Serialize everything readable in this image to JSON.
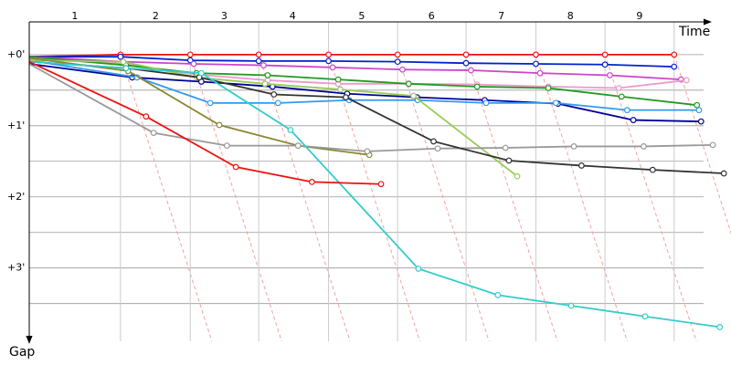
{
  "chart_data": {
    "type": "line",
    "xlabel": "Time",
    "ylabel": "Gap",
    "xlim": [
      0,
      10.1
    ],
    "ylim": [
      -0.46,
      4.03
    ],
    "xticks": [
      {
        "value": 0.66,
        "label": "1"
      },
      {
        "value": 1.83,
        "label": "2"
      },
      {
        "value": 2.82,
        "label": "3"
      },
      {
        "value": 3.81,
        "label": "4"
      },
      {
        "value": 4.81,
        "label": "5"
      },
      {
        "value": 5.82,
        "label": "6"
      },
      {
        "value": 6.83,
        "label": "7"
      },
      {
        "value": 7.83,
        "label": "8"
      },
      {
        "value": 8.83,
        "label": "9"
      }
    ],
    "lap_lines": [
      1.32,
      2.33,
      3.32,
      4.33,
      5.33,
      6.32,
      7.33,
      8.33,
      9.33
    ],
    "yticks": [
      {
        "value": 0,
        "label": "+0'"
      },
      {
        "value": 1,
        "label": "+1'"
      },
      {
        "value": 2,
        "label": "+2'"
      },
      {
        "value": 3,
        "label": "+3'"
      }
    ],
    "minor_grid": [
      0.5,
      1.5,
      2.5,
      3.5
    ],
    "series": [
      {
        "color": "#ee1111",
        "x": [
          0,
          1.32,
          2.33,
          3.32,
          4.33,
          5.33,
          6.32,
          7.33,
          8.33,
          9.33
        ],
        "values": [
          0.03,
          0,
          0,
          0,
          0,
          0,
          0,
          0,
          0,
          0
        ]
      },
      {
        "color": "#0022cc",
        "x": [
          0,
          1.32,
          2.33,
          3.32,
          4.33,
          5.33,
          6.32,
          7.33,
          8.33,
          9.33
        ],
        "values": [
          0.03,
          0.03,
          0.08,
          0.09,
          0.09,
          0.1,
          0.12,
          0.13,
          0.14,
          0.17
        ]
      },
      {
        "color": "#cc44cc",
        "x": [
          0,
          1.36,
          2.38,
          3.39,
          4.39,
          5.4,
          6.39,
          7.39,
          8.4,
          9.43
        ],
        "values": [
          0.03,
          0.1,
          0.13,
          0.15,
          0.18,
          0.21,
          0.22,
          0.26,
          0.29,
          0.35
        ]
      },
      {
        "color": "#ee99cc",
        "x": [
          0,
          1.39,
          2.42,
          3.45,
          4.47,
          5.49,
          6.48,
          7.51,
          8.53,
          9.51
        ],
        "values": [
          0.06,
          0.13,
          0.28,
          0.36,
          0.41,
          0.41,
          0.42,
          0.45,
          0.47,
          0.36
        ]
      },
      {
        "color": "#229922",
        "x": [
          0,
          1.4,
          2.42,
          3.45,
          4.47,
          5.49,
          6.48,
          7.51,
          8.57,
          9.66
        ],
        "values": [
          0.03,
          0.15,
          0.26,
          0.29,
          0.35,
          0.41,
          0.45,
          0.47,
          0.59,
          0.71
        ]
      },
      {
        "color": "#000099",
        "x": [
          0,
          1.49,
          2.49,
          3.52,
          4.6,
          5.61,
          6.59,
          7.65,
          8.74,
          9.72
        ],
        "values": [
          0.13,
          0.32,
          0.38,
          0.45,
          0.55,
          0.6,
          0.64,
          0.69,
          0.92,
          0.94
        ]
      },
      {
        "color": "#3399ee",
        "x": [
          0,
          1.56,
          2.62,
          3.6,
          4.63,
          5.62,
          6.61,
          7.62,
          8.65,
          9.69
        ],
        "values": [
          0.08,
          0.32,
          0.68,
          0.68,
          0.64,
          0.64,
          0.68,
          0.68,
          0.78,
          0.78
        ]
      },
      {
        "color": "#99cc55",
        "x": [
          0,
          1.36,
          2.42,
          3.41,
          4.5,
          5.56,
          7.06
        ],
        "values": [
          0.08,
          0.1,
          0.32,
          0.41,
          0.49,
          0.58,
          1.71
        ]
      },
      {
        "color": "#888833",
        "x": [
          0,
          1.43,
          2.75,
          3.89,
          4.92
        ],
        "values": [
          0.05,
          0.23,
          0.99,
          1.28,
          1.41
        ]
      },
      {
        "color": "#999999",
        "x": [
          0,
          1.8,
          2.86,
          3.89,
          4.89,
          5.91,
          6.89,
          7.88,
          8.89,
          9.89
        ],
        "values": [
          0.13,
          1.1,
          1.28,
          1.28,
          1.36,
          1.32,
          1.31,
          1.29,
          1.29,
          1.27
        ]
      },
      {
        "color": "#333333",
        "x": [
          0,
          1.4,
          2.46,
          3.54,
          4.58,
          5.85,
          6.94,
          7.99,
          9.02,
          10.05
        ],
        "values": [
          0.1,
          0.19,
          0.32,
          0.56,
          0.6,
          1.22,
          1.49,
          1.56,
          1.62,
          1.67
        ]
      },
      {
        "color": "#33cccc",
        "x": [
          0,
          1.4,
          2.49,
          3.78,
          5.63,
          6.78,
          7.84,
          8.91,
          9.99
        ],
        "values": [
          0.1,
          0.19,
          0.26,
          1.06,
          3.01,
          3.38,
          3.53,
          3.68,
          3.83
        ]
      },
      {
        "color": "#ee1111",
        "x": [
          0,
          1.69,
          2.99,
          4.09,
          5.09
        ],
        "values": [
          0.1,
          0.87,
          1.58,
          1.79,
          1.82
        ]
      }
    ]
  }
}
